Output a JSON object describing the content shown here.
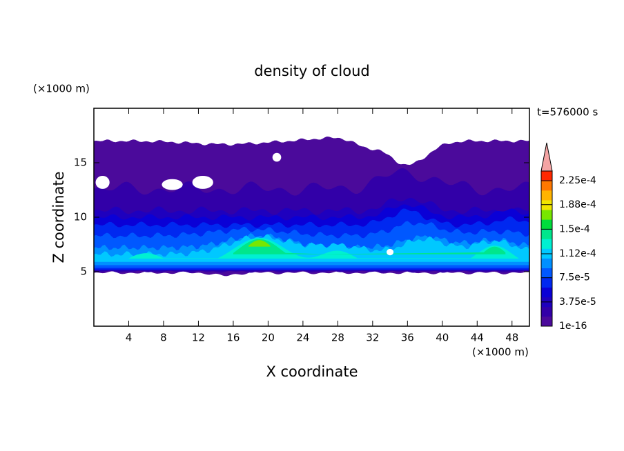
{
  "chart_data": {
    "type": "contourf",
    "title": "density of cloud",
    "x_label": "X coordinate",
    "y_label": "Z coordinate",
    "x_unit": "(×1000 m)",
    "y_unit": "(×1000 m)",
    "time_label": "t=576000 s",
    "xlim": [
      0,
      50
    ],
    "ylim": [
      0,
      20
    ],
    "xticks": [
      4,
      8,
      12,
      16,
      20,
      24,
      28,
      32,
      36,
      40,
      44,
      48
    ],
    "yticks": [
      5,
      10,
      15
    ],
    "colorbar": {
      "clim": [
        1e-16,
        0.00024
      ],
      "ticks": [
        1e-16,
        {
          "value": 3.75e-05,
          "label": "3.75e-5"
        },
        {
          "value": 7.5e-05,
          "label": "7.5e-5"
        },
        {
          "value": 0.000112,
          "label": "1.12e-4"
        },
        {
          "value": 0.00015,
          "label": "1.5e-4"
        },
        {
          "value": 0.000188,
          "label": "1.88e-4"
        },
        {
          "value": 0.000225,
          "label": "2.25e-4"
        }
      ],
      "colors": [
        "#4b0a9b",
        "#3200a8",
        "#1e00be",
        "#0a00d6",
        "#0028f0",
        "#0058ff",
        "#0090ff",
        "#00c8ff",
        "#00f0d2",
        "#00e68c",
        "#00dc3c",
        "#78e600",
        "#f0e600",
        "#ffb400",
        "#ff7800",
        "#ff2800"
      ],
      "extend_color": "#f4a4a4"
    }
  }
}
